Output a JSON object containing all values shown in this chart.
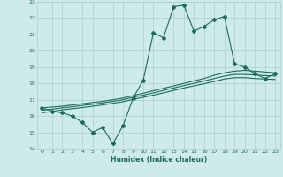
{
  "xlabel": "Humidex (Indice chaleur)",
  "x_values": [
    0,
    1,
    2,
    3,
    4,
    5,
    6,
    7,
    8,
    9,
    10,
    11,
    12,
    13,
    14,
    15,
    16,
    17,
    18,
    19,
    20,
    21,
    22,
    23
  ],
  "y_main": [
    16.5,
    16.3,
    16.2,
    16.0,
    15.6,
    15.0,
    15.3,
    14.3,
    15.4,
    17.1,
    18.2,
    21.1,
    20.8,
    22.7,
    22.8,
    21.2,
    21.5,
    21.9,
    22.1,
    19.2,
    19.0,
    18.6,
    18.3,
    18.6
  ],
  "y_upper": [
    16.5,
    16.55,
    16.6,
    16.68,
    16.75,
    16.83,
    16.9,
    17.0,
    17.1,
    17.25,
    17.4,
    17.55,
    17.7,
    17.85,
    18.0,
    18.15,
    18.3,
    18.5,
    18.65,
    18.75,
    18.8,
    18.75,
    18.7,
    18.65
  ],
  "y_mid": [
    16.35,
    16.42,
    16.5,
    16.57,
    16.65,
    16.72,
    16.8,
    16.9,
    17.0,
    17.15,
    17.28,
    17.42,
    17.57,
    17.72,
    17.87,
    18.0,
    18.15,
    18.3,
    18.45,
    18.55,
    18.55,
    18.52,
    18.48,
    18.45
  ],
  "y_lower": [
    16.2,
    16.28,
    16.38,
    16.45,
    16.52,
    16.6,
    16.68,
    16.78,
    16.88,
    17.02,
    17.15,
    17.28,
    17.42,
    17.57,
    17.72,
    17.85,
    17.98,
    18.12,
    18.27,
    18.35,
    18.35,
    18.3,
    18.27,
    18.24
  ],
  "line_color": "#1a6b5a",
  "bg_color": "#ceeaea",
  "grid_color": "#aacece",
  "ylim": [
    14,
    23
  ],
  "xlim": [
    -0.5,
    23.5
  ]
}
